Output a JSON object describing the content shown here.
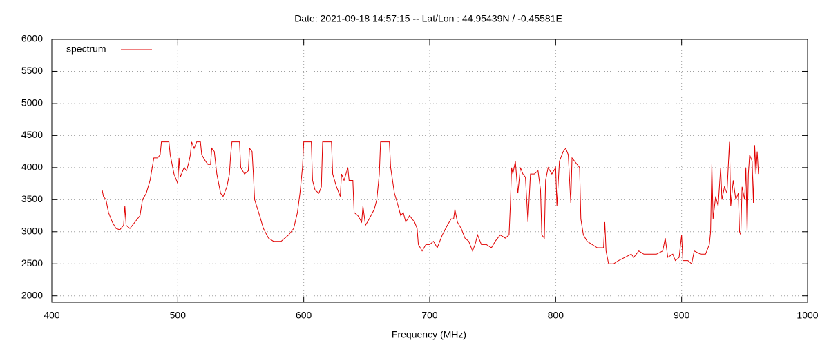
{
  "chart_data": {
    "type": "line",
    "title": "Date: 2021-09-18 14:57:15  --  Lat/Lon : 44.95439N / -0.45581E",
    "x_label": "Frequency (MHz)",
    "xlim": [
      400,
      1000
    ],
    "xticks": [
      400,
      500,
      600,
      700,
      800,
      900,
      1000
    ],
    "ylim": [
      1900,
      6000
    ],
    "yticks": [
      2000,
      2500,
      3000,
      3500,
      4000,
      4500,
      5000,
      5500,
      6000
    ],
    "grid": true,
    "legend": "top-left",
    "x": [
      440,
      441,
      443,
      445,
      448,
      451,
      454,
      457,
      458,
      459,
      462,
      466,
      470,
      472,
      475,
      478,
      481,
      484,
      486,
      487,
      493,
      494,
      497,
      500,
      501,
      502,
      505,
      507,
      509,
      510,
      511,
      513,
      515,
      518,
      519,
      522,
      524,
      526,
      527,
      529,
      531,
      534,
      536,
      539,
      541,
      542,
      543,
      549,
      550,
      553,
      556,
      557,
      559,
      560,
      561,
      565,
      568,
      572,
      576,
      582,
      588,
      592,
      595,
      597,
      599,
      600,
      606,
      607,
      609,
      612,
      614,
      615,
      622,
      623,
      626,
      629,
      630,
      632,
      635,
      636,
      639,
      640,
      643,
      646,
      647,
      649,
      652,
      656,
      658,
      660,
      661,
      668,
      669,
      672,
      675,
      677,
      679,
      681,
      684,
      688,
      690,
      691,
      694,
      697,
      700,
      703,
      706,
      710,
      714,
      717,
      719,
      720,
      722,
      725,
      728,
      731,
      734,
      736,
      738,
      741,
      745,
      749,
      752,
      756,
      760,
      763,
      764,
      765,
      766,
      768,
      770,
      772,
      774,
      776,
      778,
      780,
      783,
      786,
      788,
      789,
      791,
      792,
      794,
      797,
      800,
      801,
      803,
      806,
      808,
      810,
      812,
      813,
      817,
      819,
      820,
      822,
      825,
      829,
      833,
      838,
      839,
      840,
      842,
      846,
      850,
      855,
      860,
      862,
      866,
      870,
      875,
      880,
      885,
      887,
      889,
      893,
      895,
      898,
      900,
      901,
      905,
      908,
      910,
      915,
      919,
      922,
      923,
      924,
      925,
      927,
      929,
      931,
      932,
      934,
      936,
      938,
      939,
      941,
      943,
      945,
      946,
      947,
      948,
      950,
      951,
      952,
      953,
      954,
      956,
      957,
      958,
      959,
      960,
      961
    ],
    "series": [
      {
        "name": "spectrum",
        "color": "#e00000",
        "values": [
          3650,
          3550,
          3500,
          3300,
          3150,
          3050,
          3030,
          3100,
          3400,
          3100,
          3050,
          3150,
          3250,
          3500,
          3600,
          3800,
          4150,
          4150,
          4200,
          4400,
          4400,
          4200,
          3900,
          3750,
          4150,
          3850,
          4000,
          3950,
          4100,
          4200,
          4400,
          4300,
          4400,
          4400,
          4200,
          4100,
          4050,
          4050,
          4300,
          4250,
          3900,
          3600,
          3550,
          3700,
          3900,
          4200,
          4400,
          4400,
          4000,
          3900,
          3950,
          4300,
          4250,
          3900,
          3500,
          3250,
          3050,
          2900,
          2850,
          2850,
          2950,
          3050,
          3300,
          3600,
          4000,
          4400,
          4400,
          3800,
          3650,
          3600,
          3700,
          4400,
          4400,
          3900,
          3700,
          3550,
          3900,
          3800,
          4000,
          3800,
          3800,
          3300,
          3250,
          3150,
          3400,
          3100,
          3200,
          3350,
          3500,
          3900,
          4400,
          4400,
          4000,
          3600,
          3400,
          3250,
          3300,
          3150,
          3250,
          3150,
          3050,
          2800,
          2700,
          2800,
          2800,
          2850,
          2750,
          2950,
          3100,
          3200,
          3200,
          3350,
          3150,
          3050,
          2900,
          2850,
          2700,
          2800,
          2950,
          2800,
          2800,
          2750,
          2850,
          2950,
          2900,
          2950,
          3400,
          4000,
          3900,
          4100,
          3600,
          4000,
          3900,
          3850,
          3150,
          3900,
          3900,
          3950,
          3650,
          2950,
          2900,
          3800,
          4000,
          3900,
          4000,
          3400,
          4100,
          4250,
          4300,
          4200,
          3450,
          4150,
          4050,
          4000,
          3200,
          2950,
          2850,
          2800,
          2750,
          2750,
          3150,
          2700,
          2500,
          2500,
          2550,
          2600,
          2650,
          2600,
          2700,
          2650,
          2650,
          2650,
          2700,
          2900,
          2600,
          2650,
          2550,
          2600,
          2950,
          2550,
          2550,
          2500,
          2700,
          2650,
          2650,
          2800,
          3000,
          4050,
          3200,
          3550,
          3400,
          4000,
          3500,
          3700,
          3600,
          4400,
          3400,
          3800,
          3500,
          3600,
          3000,
          2950,
          3700,
          3500,
          4000,
          3000,
          3900,
          4200,
          4100,
          3450,
          4350,
          3900,
          4250,
          3900
        ]
      }
    ]
  }
}
